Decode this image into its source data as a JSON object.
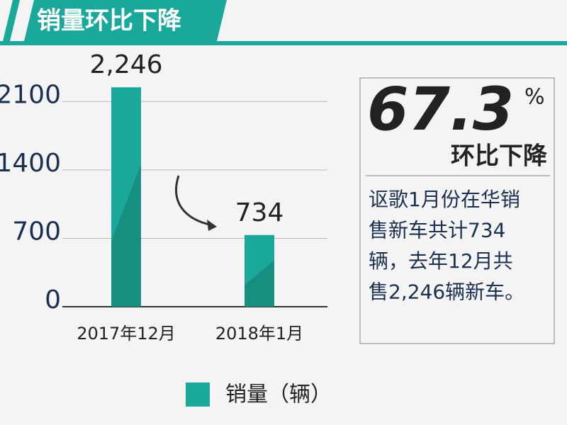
{
  "header": {
    "title": "销量环比下降"
  },
  "chart_data": {
    "type": "bar",
    "categories": [
      "2017年12月",
      "2018年1月"
    ],
    "values": [
      2246,
      734
    ],
    "value_labels": [
      "2,246",
      "734"
    ],
    "color": "#1aa89a",
    "ylim": [
      0,
      2400
    ],
    "yticks": [
      0,
      700,
      1400,
      2100
    ],
    "grid": true,
    "legend": "销量（辆）"
  },
  "callout": {
    "value": "67.3",
    "unit": "%",
    "label": "环比下降",
    "text_lines": [
      "讴歌1月份在华销",
      "售新车共计734",
      "辆，去年12月共",
      "售2,246辆新车。"
    ]
  }
}
